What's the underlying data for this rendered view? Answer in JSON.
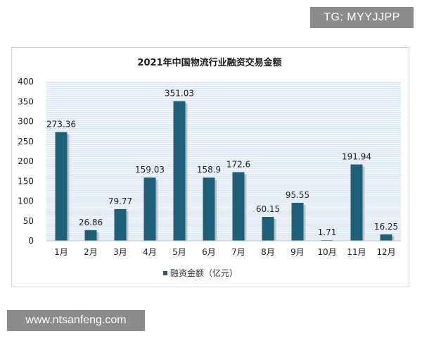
{
  "watermarks": {
    "top": "TG: MYYJJPP",
    "bottom": "www.ntsanfeng.com"
  },
  "chart_data": {
    "type": "bar",
    "title": "2021年中国物流行业融资交易金额",
    "xlabel": "",
    "ylabel": "",
    "categories": [
      "1月",
      "2月",
      "3月",
      "4月",
      "5月",
      "6月",
      "7月",
      "8月",
      "9月",
      "10月",
      "11月",
      "12月"
    ],
    "series": [
      {
        "name": "融资金额（亿元）",
        "values": [
          273.36,
          26.86,
          79.77,
          159.03,
          351.03,
          158.9,
          172.6,
          60.15,
          95.55,
          1.71,
          191.94,
          16.25
        ],
        "labels": [
          "273.36",
          "26.86",
          "79.77",
          "159.03",
          "351.03",
          "158.9",
          "172.6",
          "60.15",
          "95.55",
          "1.71",
          "191.94",
          "16.25"
        ]
      }
    ],
    "ylim": [
      0,
      400
    ],
    "yticks": [
      0,
      50,
      100,
      150,
      200,
      250,
      300,
      350,
      400
    ],
    "grid": true,
    "legend_position": "bottom",
    "colors": {
      "bar": "#1e5f7a",
      "bar_shadow": "#c2c2c2",
      "plot_background": "#dde9f6",
      "grid_line": "#ffffff"
    }
  }
}
